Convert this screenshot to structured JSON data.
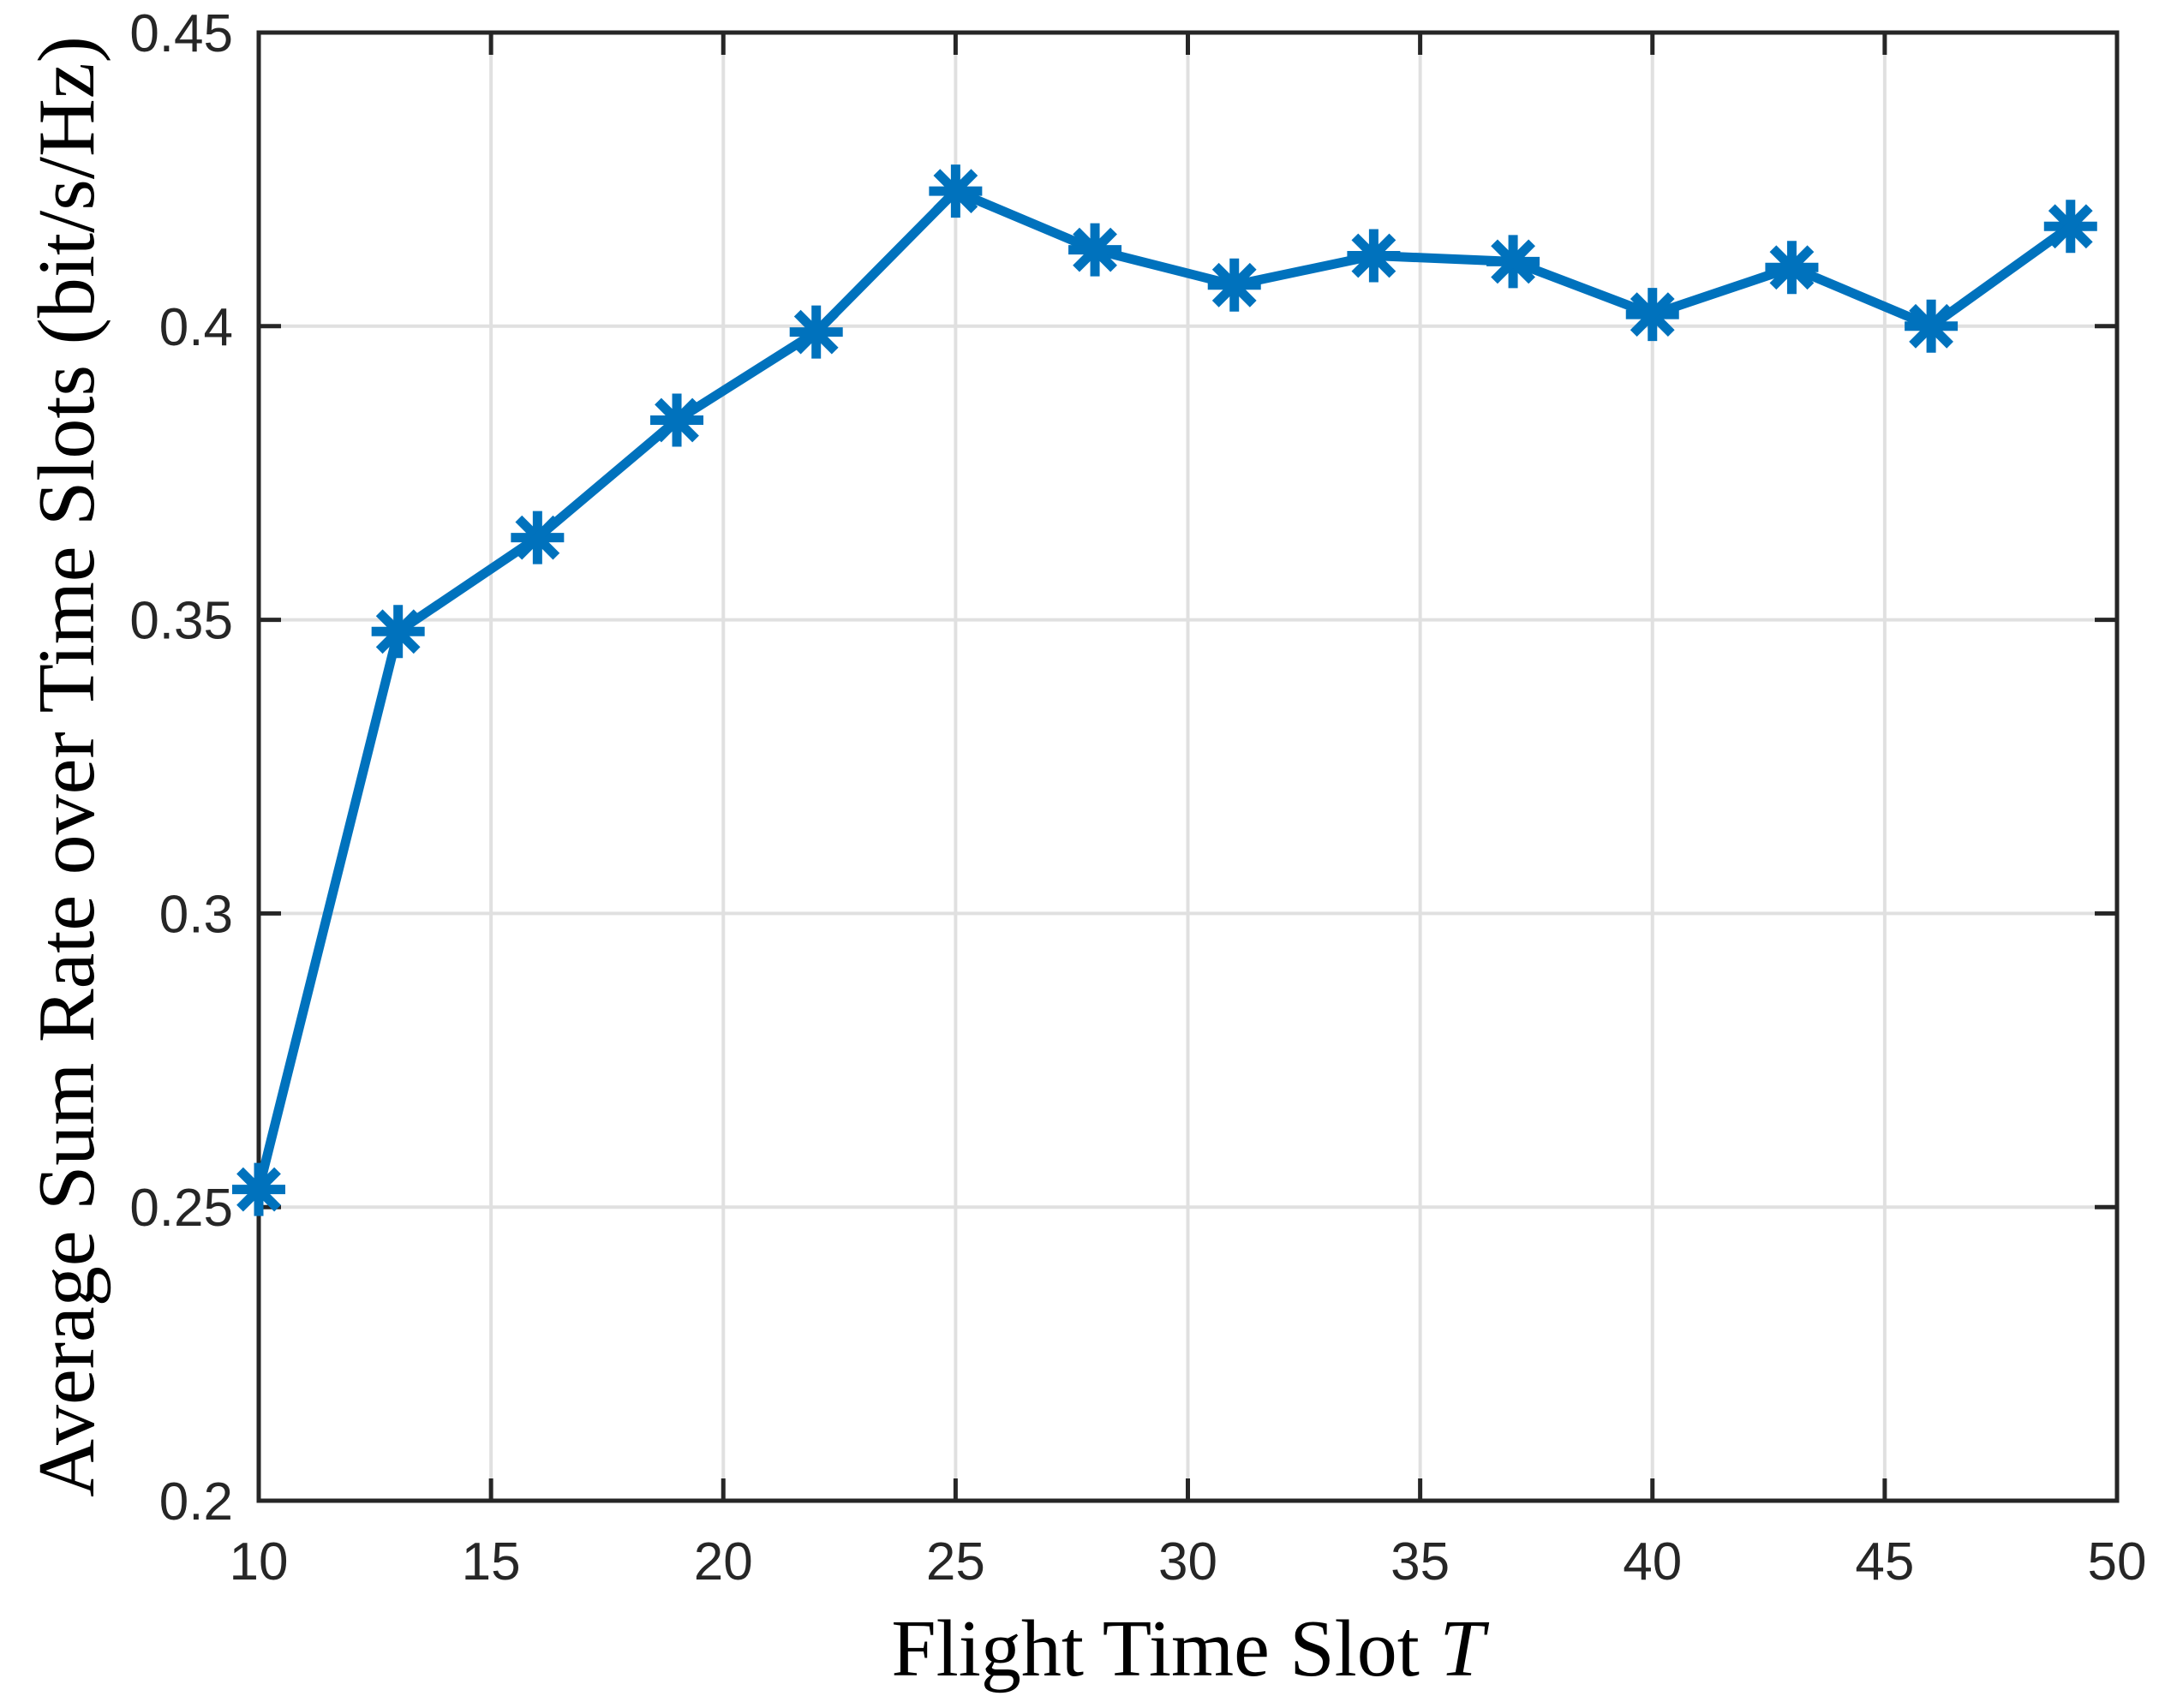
{
  "chart_data": {
    "type": "line",
    "title": "",
    "xlabel": "Flight Time Slot",
    "xlabel_var": "T",
    "ylabel": "Average Sum Rate over Time Slots (bit/s/Hz)",
    "x": [
      10,
      13,
      16,
      19,
      22,
      25,
      28,
      31,
      34,
      37,
      40,
      43,
      46,
      49
    ],
    "y": [
      0.253,
      0.348,
      0.364,
      0.384,
      0.399,
      0.423,
      0.413,
      0.407,
      0.412,
      0.411,
      0.402,
      0.41,
      0.4,
      0.417
    ],
    "xlim": [
      10,
      50
    ],
    "ylim": [
      0.2,
      0.45
    ],
    "xticks": [
      10,
      15,
      20,
      25,
      30,
      35,
      40,
      45,
      50
    ],
    "xtick_labels": [
      "10",
      "15",
      "20",
      "25",
      "30",
      "35",
      "40",
      "45",
      "50"
    ],
    "yticks": [
      0.2,
      0.25,
      0.3,
      0.35,
      0.4,
      0.45
    ],
    "ytick_labels": [
      "0.2",
      "0.25",
      "0.3",
      "0.35",
      "0.4",
      "0.45"
    ],
    "grid": true,
    "legend": "none",
    "marker": "asterisk",
    "line_color": "#0072BD",
    "grid_color": "#e0e0e0",
    "axis_color": "#262626",
    "tick_font_size": 62,
    "tick_direction": "in"
  }
}
